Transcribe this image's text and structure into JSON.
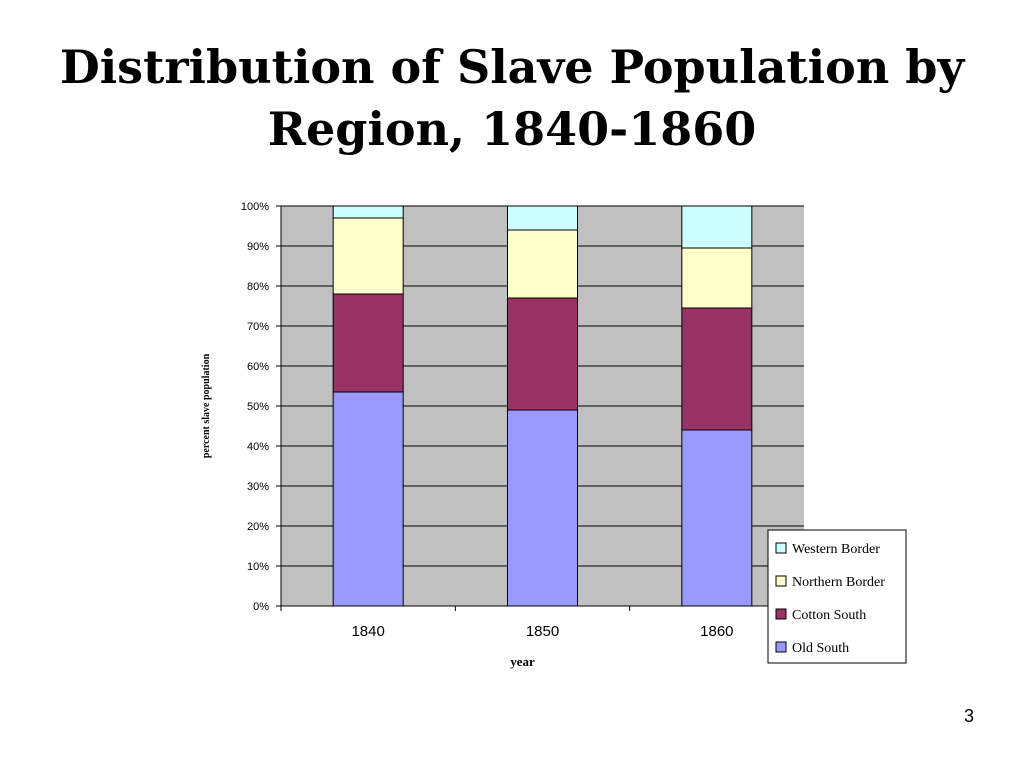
{
  "slide": {
    "title_line1": "Distribution of Slave Population by",
    "title_line2": "Region, 1840-1860",
    "page_number": "3"
  },
  "chart_data": {
    "type": "bar",
    "stacked": true,
    "title": "Distribution of Slave Population by Region, 1840-1860",
    "xlabel": "year",
    "ylabel": "percent slave population",
    "categories": [
      "1840",
      "1850",
      "1860"
    ],
    "ylim": [
      0,
      100
    ],
    "yticks": [
      0,
      10,
      20,
      30,
      40,
      50,
      60,
      70,
      80,
      90,
      100
    ],
    "ytick_labels": [
      "0%",
      "10%",
      "20%",
      "30%",
      "40%",
      "50%",
      "60%",
      "70%",
      "80%",
      "90%",
      "100%"
    ],
    "grid": true,
    "legend_position": "bottom-right",
    "series": [
      {
        "name": "Old South",
        "color": "#9999ff",
        "values": [
          53.5,
          49,
          44
        ]
      },
      {
        "name": "Cotton South",
        "color": "#993366",
        "values": [
          24.5,
          28,
          30.5
        ]
      },
      {
        "name": "Northern Border",
        "color": "#ffffcc",
        "values": [
          19,
          17,
          15
        ]
      },
      {
        "name": "Western Border",
        "color": "#ccffff",
        "values": [
          3,
          6,
          10.5
        ]
      }
    ],
    "legend_order": [
      "Western Border",
      "Northern Border",
      "Cotton South",
      "Old South"
    ],
    "plot_background": "#c0c0c0"
  }
}
